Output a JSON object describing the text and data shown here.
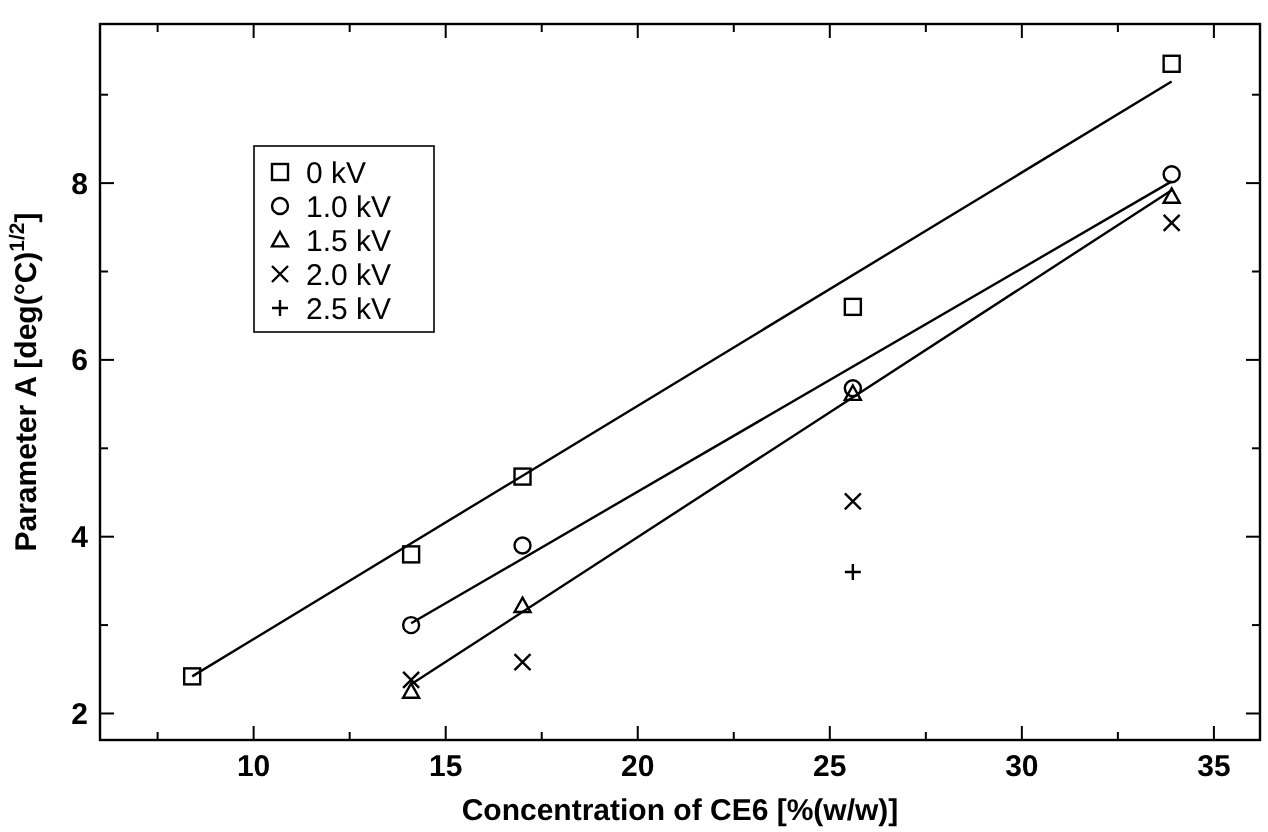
{
  "chart_data": {
    "type": "scatter",
    "xlabel": "Concentration of CE6  [%(w/w)]",
    "ylabel": "Parameter A  [deg(°C)$^{1/2}$]",
    "xlim": [
      6,
      36.2
    ],
    "ylim": [
      1.7,
      9.8
    ],
    "xticks": [
      {
        "value": 7.5,
        "label": null
      },
      10,
      {
        "value": 12.5,
        "label": null
      },
      15,
      {
        "value": 17.5,
        "label": null
      },
      20,
      {
        "value": 22.5,
        "label": null
      },
      25,
      {
        "value": 27.5,
        "label": null
      },
      30,
      {
        "value": 32.5,
        "label": null
      },
      35
    ],
    "yticks": [
      2,
      {
        "value": 3,
        "label": null
      },
      4,
      {
        "value": 5,
        "label": null
      },
      6,
      {
        "value": 7,
        "label": null
      },
      8,
      {
        "value": 9,
        "label": null
      }
    ],
    "legend": "top left",
    "grid": false,
    "series": [
      {
        "name": "0 kV",
        "color": "#000000",
        "marker": "square",
        "x": [
          8.4,
          14.1,
          17,
          25.6,
          33.9
        ],
        "values": [
          2.42,
          3.8,
          4.68,
          6.6,
          9.35
        ]
      },
      {
        "name": "1.0 kV",
        "color": "#000000",
        "marker": "circle",
        "x": [
          14.1,
          17,
          25.6,
          33.9
        ],
        "values": [
          3.0,
          3.9,
          5.68,
          8.1
        ]
      },
      {
        "name": "1.5 kV",
        "color": "#000000",
        "marker": "triangle",
        "x": [
          14.1,
          17,
          25.6,
          33.9
        ],
        "values": [
          2.25,
          3.22,
          5.62,
          7.85
        ]
      },
      {
        "name": "2.0 kV",
        "color": "#000000",
        "marker": "cross",
        "x": [
          14.1,
          17,
          25.6,
          33.9
        ],
        "values": [
          2.38,
          2.58,
          4.4,
          7.55
        ]
      },
      {
        "name": "2.5 kV",
        "color": "#000000",
        "marker": "plus",
        "x": [
          25.6
        ],
        "values": [
          3.6
        ]
      },
      {
        "type": "line",
        "color": "#000000",
        "x": [
          8.4,
          33.9
        ],
        "values": [
          2.42,
          9.15
        ]
      },
      {
        "type": "line",
        "color": "#000000",
        "x": [
          14.1,
          33.9
        ],
        "values": [
          3.02,
          8.02
        ]
      },
      {
        "type": "line",
        "color": "#000000",
        "x": [
          14.1,
          33.9
        ],
        "values": [
          2.33,
          7.92
        ]
      }
    ]
  }
}
